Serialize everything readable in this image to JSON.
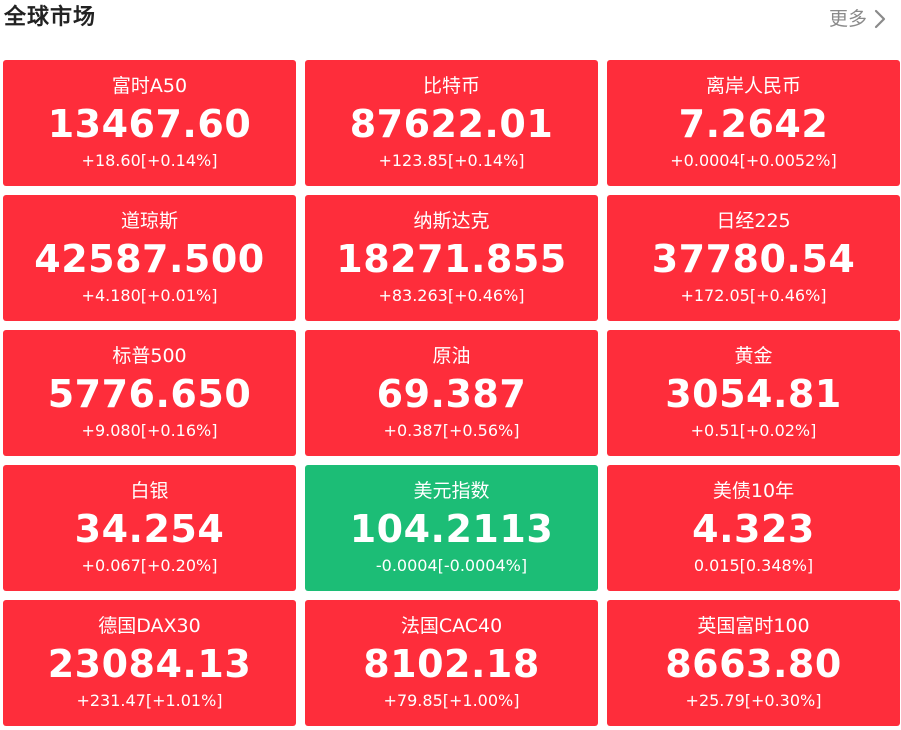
{
  "header": {
    "title": "全球市场",
    "more_label": "更多"
  },
  "colors": {
    "up": "#fe2d3b",
    "down": "#1cbd76"
  },
  "markets": [
    {
      "name": "富时A50",
      "price": "13467.60",
      "change": "+18.60[+0.14%]",
      "trend": "up"
    },
    {
      "name": "比特币",
      "price": "87622.01",
      "change": "+123.85[+0.14%]",
      "trend": "up"
    },
    {
      "name": "离岸人民币",
      "price": "7.2642",
      "change": "+0.0004[+0.0052%]",
      "trend": "up"
    },
    {
      "name": "道琼斯",
      "price": "42587.500",
      "change": "+4.180[+0.01%]",
      "trend": "up"
    },
    {
      "name": "纳斯达克",
      "price": "18271.855",
      "change": "+83.263[+0.46%]",
      "trend": "up"
    },
    {
      "name": "日经225",
      "price": "37780.54",
      "change": "+172.05[+0.46%]",
      "trend": "up"
    },
    {
      "name": "标普500",
      "price": "5776.650",
      "change": "+9.080[+0.16%]",
      "trend": "up"
    },
    {
      "name": "原油",
      "price": "69.387",
      "change": "+0.387[+0.56%]",
      "trend": "up"
    },
    {
      "name": "黄金",
      "price": "3054.81",
      "change": "+0.51[+0.02%]",
      "trend": "up"
    },
    {
      "name": "白银",
      "price": "34.254",
      "change": "+0.067[+0.20%]",
      "trend": "up"
    },
    {
      "name": "美元指数",
      "price": "104.2113",
      "change": "-0.0004[-0.0004%]",
      "trend": "down"
    },
    {
      "name": "美债10年",
      "price": "4.323",
      "change": "0.015[0.348%]",
      "trend": "up"
    },
    {
      "name": "德国DAX30",
      "price": "23084.13",
      "change": "+231.47[+1.01%]",
      "trend": "up"
    },
    {
      "name": "法国CAC40",
      "price": "8102.18",
      "change": "+79.85[+1.00%]",
      "trend": "up"
    },
    {
      "name": "英国富时100",
      "price": "8663.80",
      "change": "+25.79[+0.30%]",
      "trend": "up"
    }
  ]
}
